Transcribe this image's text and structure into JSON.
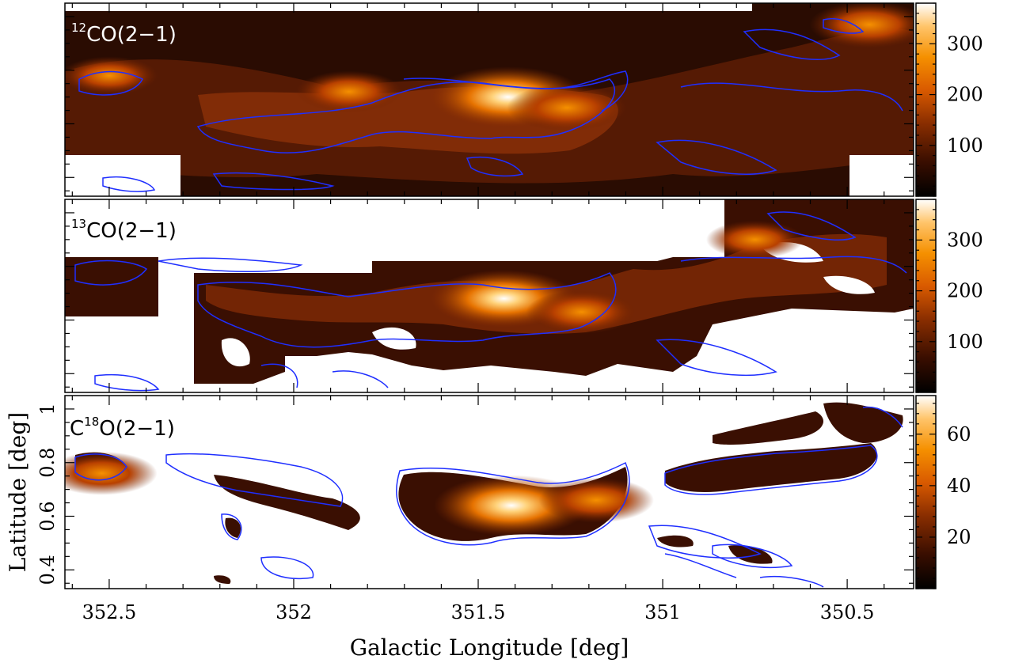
{
  "chart_data": {
    "type": "heatmap",
    "xlabel": "Galactic Longitude [deg]",
    "ylabel": "Latitude [deg]",
    "xlim": [
      352.62,
      350.32
    ],
    "ylim": [
      0.33,
      1.05
    ],
    "x_ticks": [
      352.5,
      352,
      351.5,
      351,
      350.5
    ],
    "x_tick_labels": [
      "352.5",
      "352",
      "351.5",
      "351",
      "350.5"
    ],
    "y_ticks": [
      0.4,
      0.6,
      0.8,
      1.0
    ],
    "y_tick_labels": [
      "0.4",
      "0.6",
      "0.8",
      "1"
    ],
    "colormap": [
      "#000000",
      "#3a0e00",
      "#8a2e00",
      "#d95a00",
      "#f59000",
      "#ffc46a",
      "#ffffff"
    ],
    "contour_color": "#1f2fff",
    "panels": [
      {
        "label_sup": "12",
        "label_text": "CO(2−1)",
        "label_color": "#ffffff",
        "colorbar_ticks": [
          100,
          200,
          300
        ],
        "colorbar_labels": [
          "100",
          "200",
          "300"
        ],
        "colorbar_range": [
          0,
          380
        ],
        "peaks": [
          {
            "l": 351.42,
            "b": 0.7,
            "intensity": 1.0
          },
          {
            "l": 351.26,
            "b": 0.66,
            "intensity": 0.6
          },
          {
            "l": 351.85,
            "b": 0.72,
            "intensity": 0.45
          },
          {
            "l": 350.44,
            "b": 0.97,
            "intensity": 0.6
          },
          {
            "l": 352.5,
            "b": 0.78,
            "intensity": 0.35
          }
        ]
      },
      {
        "label_sup": "13",
        "label_text": "CO(2−1)",
        "label_color": "#000000",
        "colorbar_ticks": [
          100,
          200,
          300
        ],
        "colorbar_labels": [
          "100",
          "200",
          "300"
        ],
        "colorbar_range": [
          0,
          380
        ],
        "peaks": [
          {
            "l": 351.43,
            "b": 0.68,
            "intensity": 0.9
          },
          {
            "l": 351.22,
            "b": 0.63,
            "intensity": 0.5
          },
          {
            "l": 350.75,
            "b": 0.9,
            "intensity": 0.35
          }
        ]
      },
      {
        "label_pre": "C",
        "label_sup": "18",
        "label_text": "O(2−1)",
        "label_color": "#000000",
        "colorbar_ticks": [
          20,
          40,
          60
        ],
        "colorbar_labels": [
          "20",
          "40",
          "60"
        ],
        "colorbar_range": [
          0,
          75
        ],
        "peaks": [
          {
            "l": 351.41,
            "b": 0.64,
            "intensity": 1.0
          },
          {
            "l": 351.18,
            "b": 0.66,
            "intensity": 0.55
          },
          {
            "l": 352.52,
            "b": 0.76,
            "intensity": 0.5
          }
        ]
      }
    ]
  }
}
